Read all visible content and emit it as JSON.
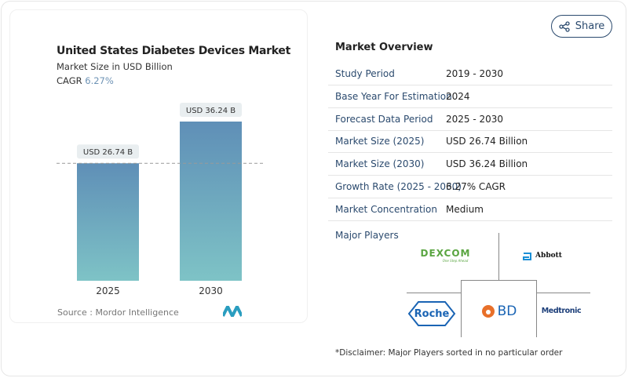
{
  "share_label": "Share",
  "chart_data": {
    "type": "bar",
    "title": "United States Diabetes Devices Market",
    "subtitle": "Market Size in USD Billion",
    "cagr_label": "CAGR",
    "cagr_value": "6.27%",
    "categories": [
      "2025",
      "2030"
    ],
    "values": [
      26.74,
      36.24
    ],
    "data_labels": [
      "USD 26.74 B",
      "USD 36.24 B"
    ],
    "ylim": [
      0,
      36.24
    ],
    "colors": {
      "top": "#5f8fb7",
      "bottom": "#7ec3c6"
    },
    "source": "Source :  Mordor Intelligence"
  },
  "overview": {
    "title": "Market Overview",
    "rows": [
      {
        "k": "Study Period",
        "v": "2019 - 2030"
      },
      {
        "k": "Base Year For Estimation",
        "v": "2024"
      },
      {
        "k": "Forecast Data Period",
        "v": "2025 - 2030"
      },
      {
        "k": "Market Size (2025)",
        "v": "USD 26.74 Billion"
      },
      {
        "k": "Market Size (2030)",
        "v": "USD 36.24 Billion"
      },
      {
        "k": "Growth Rate (2025 - 2030)",
        "v": "6.27% CAGR"
      },
      {
        "k": "Market Concentration",
        "v": "Medium"
      }
    ],
    "players_label": "Major Players",
    "players": [
      "DEXCOM",
      "Abbott",
      "Roche",
      "BD",
      "Medtronic"
    ],
    "dexcom_tag": "One Step Ahead",
    "disclaimer": "*Disclaimer: Major Players sorted in no particular order"
  }
}
